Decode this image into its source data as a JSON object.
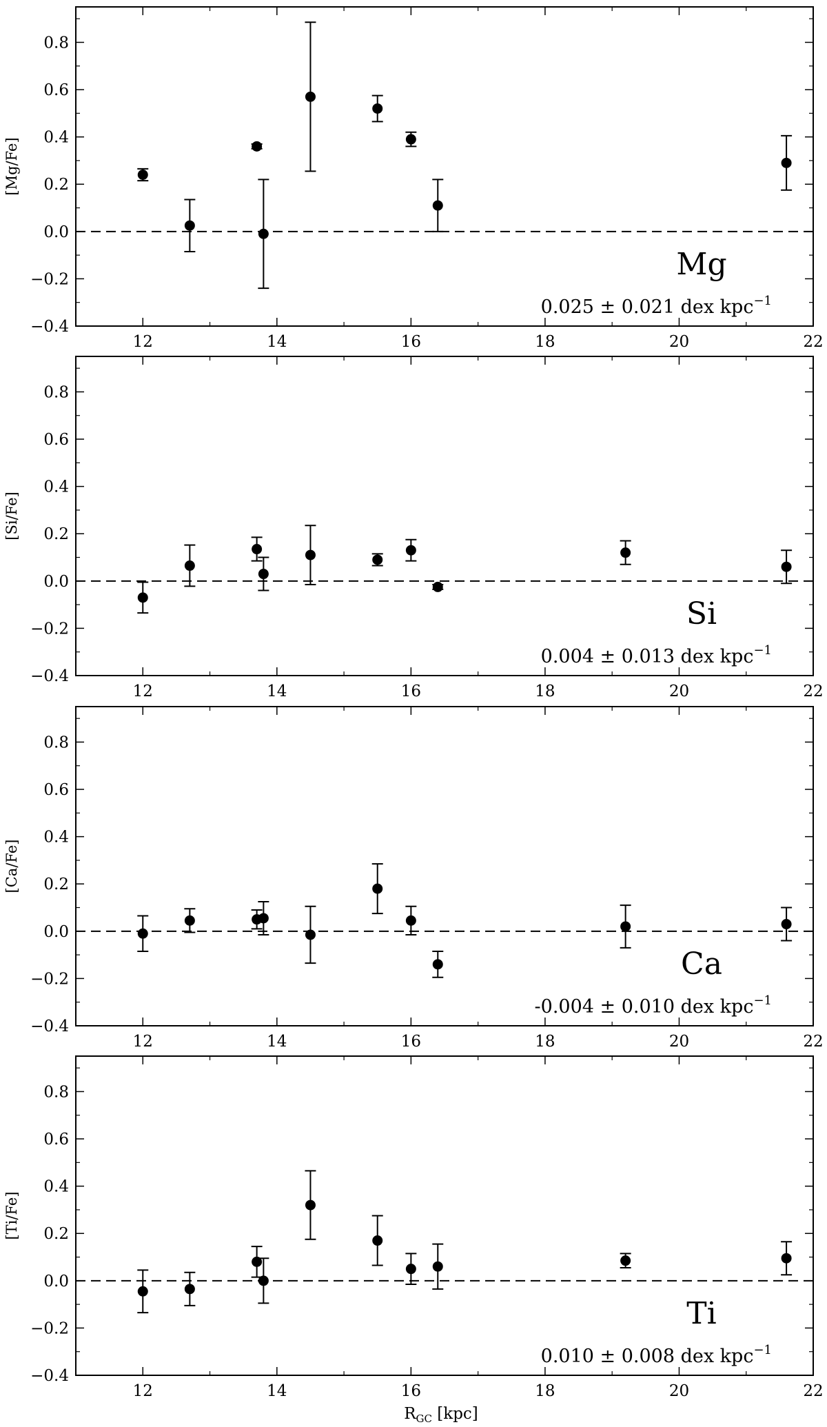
{
  "figure": {
    "xlabel": "R",
    "xlabel_sub": "GC",
    "xlabel_unit": " [kpc]"
  },
  "chart_data": [
    {
      "type": "scatter",
      "element": "Mg",
      "ylabel": "[Mg/Fe]",
      "slope": {
        "prefix": "0.025  ± 0.021 dex kpc",
        "sup": "−1"
      },
      "xlim": [
        11,
        22
      ],
      "ylim": [
        -0.4,
        0.95
      ],
      "xticks": [
        "12",
        "14",
        "16",
        "18",
        "20",
        "22"
      ],
      "yticks": [
        "−0.4",
        "−0.2",
        "0.0",
        "0.2",
        "0.4",
        "0.6",
        "0.8"
      ],
      "reference_line": 0.0,
      "points": [
        {
          "x": 12.0,
          "y": 0.24,
          "err": 0.025
        },
        {
          "x": 12.7,
          "y": 0.025,
          "err": 0.11
        },
        {
          "x": 13.7,
          "y": 0.36,
          "err": 0.01
        },
        {
          "x": 13.8,
          "y": -0.01,
          "err": 0.23
        },
        {
          "x": 14.5,
          "y": 0.57,
          "err": 0.315
        },
        {
          "x": 15.5,
          "y": 0.52,
          "err": 0.055
        },
        {
          "x": 16.0,
          "y": 0.39,
          "err": 0.03
        },
        {
          "x": 16.4,
          "y": 0.11,
          "err": 0.11
        },
        {
          "x": 21.6,
          "y": 0.29,
          "err": 0.115
        }
      ]
    },
    {
      "type": "scatter",
      "element": "Si",
      "ylabel": "[Si/Fe]",
      "slope": {
        "prefix": "0.004  ± 0.013 dex kpc",
        "sup": "−1"
      },
      "xlim": [
        11,
        22
      ],
      "ylim": [
        -0.4,
        0.95
      ],
      "xticks": [
        "12",
        "14",
        "16",
        "18",
        "20",
        "22"
      ],
      "yticks": [
        "−0.4",
        "−0.2",
        "0.0",
        "0.2",
        "0.4",
        "0.6",
        "0.8"
      ],
      "reference_line": 0.0,
      "points": [
        {
          "x": 12.0,
          "y": -0.07,
          "err": 0.065
        },
        {
          "x": 12.7,
          "y": 0.065,
          "err": 0.087
        },
        {
          "x": 13.7,
          "y": 0.135,
          "err": 0.05
        },
        {
          "x": 13.8,
          "y": 0.03,
          "err": 0.07
        },
        {
          "x": 14.5,
          "y": 0.11,
          "err": 0.125
        },
        {
          "x": 15.5,
          "y": 0.09,
          "err": 0.025
        },
        {
          "x": 16.0,
          "y": 0.13,
          "err": 0.045
        },
        {
          "x": 16.4,
          "y": -0.025,
          "err": 0.01
        },
        {
          "x": 19.2,
          "y": 0.12,
          "err": 0.05
        },
        {
          "x": 21.6,
          "y": 0.06,
          "err": 0.07
        }
      ]
    },
    {
      "type": "scatter",
      "element": "Ca",
      "ylabel": "[Ca/Fe]",
      "slope": {
        "prefix": "-0.004  ± 0.010 dex kpc",
        "sup": "−1"
      },
      "xlim": [
        11,
        22
      ],
      "ylim": [
        -0.4,
        0.95
      ],
      "xticks": [
        "12",
        "14",
        "16",
        "18",
        "20",
        "22"
      ],
      "yticks": [
        "−0.4",
        "−0.2",
        "0.0",
        "0.2",
        "0.4",
        "0.6",
        "0.8"
      ],
      "reference_line": 0.0,
      "points": [
        {
          "x": 12.0,
          "y": -0.01,
          "err": 0.075
        },
        {
          "x": 12.7,
          "y": 0.045,
          "err": 0.05
        },
        {
          "x": 13.7,
          "y": 0.05,
          "err": 0.04
        },
        {
          "x": 13.8,
          "y": 0.055,
          "err": 0.07
        },
        {
          "x": 14.5,
          "y": -0.015,
          "err": 0.12
        },
        {
          "x": 15.5,
          "y": 0.18,
          "err": 0.105
        },
        {
          "x": 16.0,
          "y": 0.045,
          "err": 0.06
        },
        {
          "x": 16.4,
          "y": -0.14,
          "err": 0.055
        },
        {
          "x": 19.2,
          "y": 0.02,
          "err": 0.09
        },
        {
          "x": 21.6,
          "y": 0.03,
          "err": 0.07
        }
      ]
    },
    {
      "type": "scatter",
      "element": "Ti",
      "ylabel": "[Ti/Fe]",
      "slope": {
        "prefix": "0.010  ± 0.008 dex kpc",
        "sup": "−1"
      },
      "xlim": [
        11,
        22
      ],
      "ylim": [
        -0.4,
        0.95
      ],
      "xticks": [
        "12",
        "14",
        "16",
        "18",
        "20",
        "22"
      ],
      "yticks": [
        "−0.4",
        "−0.2",
        "0.0",
        "0.2",
        "0.4",
        "0.6",
        "0.8"
      ],
      "reference_line": 0.0,
      "points": [
        {
          "x": 12.0,
          "y": -0.045,
          "err": 0.09
        },
        {
          "x": 12.7,
          "y": -0.035,
          "err": 0.07
        },
        {
          "x": 13.7,
          "y": 0.08,
          "err": 0.065
        },
        {
          "x": 13.8,
          "y": 0.0,
          "err": 0.095
        },
        {
          "x": 14.5,
          "y": 0.32,
          "err": 0.145
        },
        {
          "x": 15.5,
          "y": 0.17,
          "err": 0.105
        },
        {
          "x": 16.0,
          "y": 0.05,
          "err": 0.065
        },
        {
          "x": 16.4,
          "y": 0.06,
          "err": 0.095
        },
        {
          "x": 19.2,
          "y": 0.085,
          "err": 0.03
        },
        {
          "x": 21.6,
          "y": 0.095,
          "err": 0.07
        }
      ]
    }
  ]
}
